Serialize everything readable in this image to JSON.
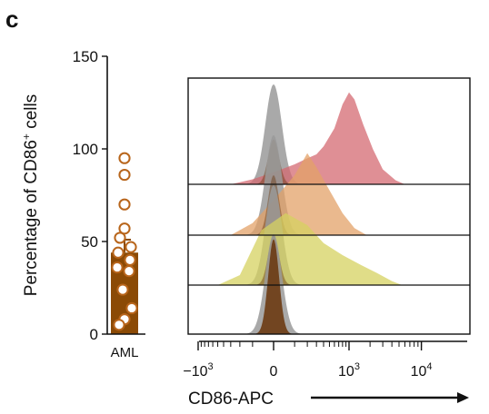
{
  "panel_label": "c",
  "colors": {
    "bar": "#8b4a05",
    "dot_edge": "#b8651b",
    "grey": "#9a9a9a",
    "brown": "#6b3a12",
    "red": "#d46a72",
    "orange": "#e3a268",
    "yellow": "#d6d260"
  },
  "chart_data": [
    {
      "type": "bar",
      "categories": [
        "AML"
      ],
      "values": [
        44
      ],
      "error": [
        7
      ],
      "points": [
        95,
        86,
        70,
        57,
        52,
        47,
        44,
        40,
        36,
        34,
        24,
        14,
        8,
        5
      ],
      "ylabel_main": "Percentage of CD86",
      "ylabel_sup": "+",
      "ylabel_tail": " cells",
      "ylim": [
        0,
        150
      ],
      "yticks": [
        "0",
        "50",
        "100",
        "150"
      ],
      "xtick": "AML"
    },
    {
      "type": "area",
      "xlabel": "CD86-APC",
      "xaxis": "biexponential",
      "xticks": [
        {
          "base": "−10",
          "exp": "3",
          "value": -1000
        },
        {
          "base": "0",
          "exp": "",
          "value": 0
        },
        {
          "base": "10",
          "exp": "3",
          "value": 1000
        },
        {
          "base": "10",
          "exp": "4",
          "value": 10000
        }
      ],
      "lanes": [
        {
          "fill": "red",
          "grey_peak": 1.0,
          "brown_peak": 0.45,
          "stain": [
            [
              -300,
              0
            ],
            [
              -100,
              0.05
            ],
            [
              0,
              0.12
            ],
            [
              100,
              0.2
            ],
            [
              200,
              0.26
            ],
            [
              300,
              0.3
            ],
            [
              400,
              0.38
            ],
            [
              600,
              0.56
            ],
            [
              800,
              0.8
            ],
            [
              1000,
              0.92
            ],
            [
              1200,
              0.85
            ],
            [
              1600,
              0.6
            ],
            [
              2200,
              0.35
            ],
            [
              3000,
              0.15
            ],
            [
              4500,
              0.04
            ],
            [
              6000,
              0
            ]
          ]
        },
        {
          "fill": "orange",
          "grey_peak": 1.0,
          "brown_peak": 0.6,
          "stain": [
            [
              -300,
              0
            ],
            [
              -100,
              0.12
            ],
            [
              0,
              0.35
            ],
            [
              100,
              0.6
            ],
            [
              200,
              0.82
            ],
            [
              300,
              0.68
            ],
            [
              500,
              0.45
            ],
            [
              800,
              0.22
            ],
            [
              1200,
              0.07
            ],
            [
              1800,
              0
            ]
          ]
        },
        {
          "fill": "yellow",
          "grey_peak": 1.0,
          "brown_peak": 0.5,
          "stain": [
            [
              -500,
              0
            ],
            [
              -200,
              0.1
            ],
            [
              -50,
              0.55
            ],
            [
              50,
              0.72
            ],
            [
              200,
              0.6
            ],
            [
              400,
              0.42
            ],
            [
              800,
              0.3
            ],
            [
              1500,
              0.2
            ],
            [
              2500,
              0.12
            ],
            [
              4000,
              0.04
            ],
            [
              5500,
              0
            ]
          ]
        },
        {
          "fill": "brown",
          "grey_peak": 1.0,
          "brown_peak": 0.95,
          "stain": []
        }
      ]
    }
  ]
}
